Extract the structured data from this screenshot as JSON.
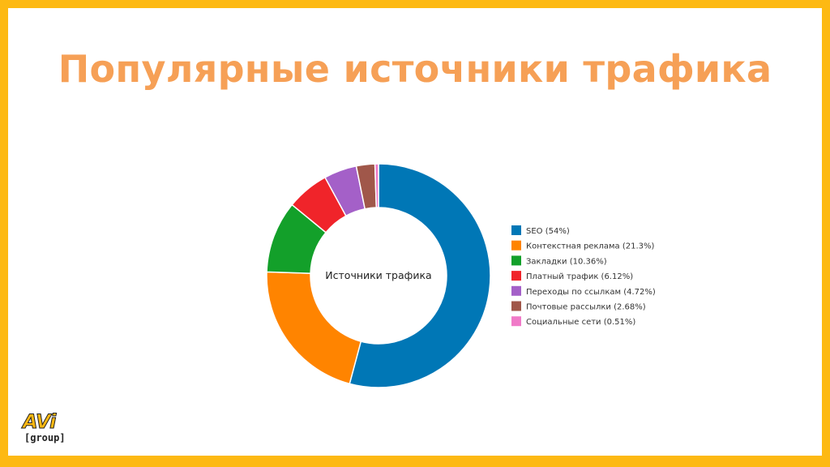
{
  "page": {
    "title": "Популярные источники трафика"
  },
  "logo": {
    "brand": "AVi",
    "sub": "[group]"
  },
  "chart_data": {
    "type": "pie",
    "variant": "donut",
    "center_label": "Источники трафика",
    "legend_position": "right",
    "series": [
      {
        "name": "SEO (54%)",
        "value": 54,
        "color": "#0077b6"
      },
      {
        "name": "Контекстная реклама (21.3%)",
        "value": 21.3,
        "color": "#ff8400"
      },
      {
        "name": "Закладки (10.36%)",
        "value": 10.36,
        "color": "#13a02a"
      },
      {
        "name": "Платный трафик (6.12%)",
        "value": 6.12,
        "color": "#f0242a"
      },
      {
        "name": "Переходы по ссылкам (4.72%)",
        "value": 4.72,
        "color": "#a460c8"
      },
      {
        "name": "Почтовые рассылки (2.68%)",
        "value": 2.68,
        "color": "#a0574a"
      },
      {
        "name": "Социальные сети (0.51%)",
        "value": 0.51,
        "color": "#f07ac8"
      }
    ]
  }
}
